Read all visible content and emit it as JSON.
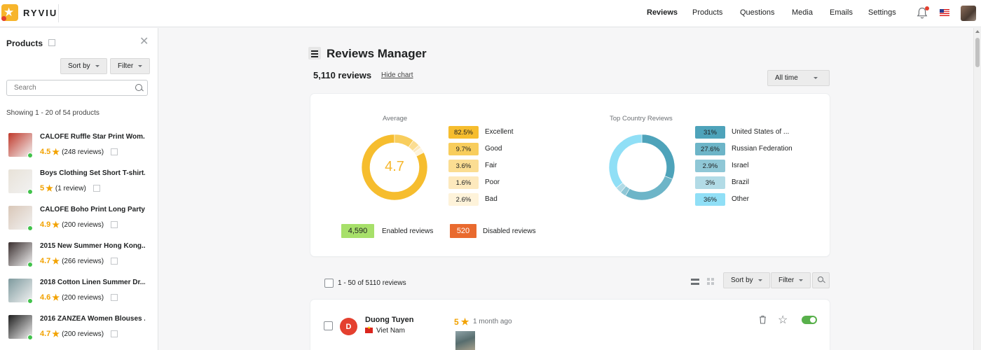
{
  "app": {
    "name": "RYVIU"
  },
  "nav": [
    {
      "label": "Reviews",
      "active": true
    },
    {
      "label": "Products",
      "active": false
    },
    {
      "label": "Questions",
      "active": false
    },
    {
      "label": "Media",
      "active": false
    },
    {
      "label": "Emails",
      "active": false
    },
    {
      "label": "Settings",
      "active": false
    }
  ],
  "sidebar": {
    "title": "Products",
    "sort_label": "Sort by",
    "filter_label": "Filter",
    "search_placeholder": "Search",
    "showing": "Showing 1 - 20 of 54 products",
    "products": [
      {
        "name": "CALOFE Ruffle Star Print Wom...",
        "rating": "4.5",
        "reviews": "(248 reviews)",
        "thumb": "#c0392b"
      },
      {
        "name": "Boys Clothing Set Short T-shirt...",
        "rating": "5",
        "reviews": "(1 review)",
        "thumb": "#e8e2d8"
      },
      {
        "name": "CALOFE Boho Print Long Party...",
        "rating": "4.9",
        "reviews": "(200 reviews)",
        "thumb": "#d9c7b8"
      },
      {
        "name": "2015 New Summer Hong Kong...",
        "rating": "4.7",
        "reviews": "(266 reviews)",
        "thumb": "#3a2f2f"
      },
      {
        "name": "2018 Cotton Linen Summer Dr...",
        "rating": "4.6",
        "reviews": "(200 reviews)",
        "thumb": "#7e9a9e"
      },
      {
        "name": "2016 ZANZEA Women Blouses ...",
        "rating": "4.7",
        "reviews": "(200 reviews)",
        "thumb": "#1e1e1e"
      }
    ]
  },
  "main": {
    "title": "Reviews Manager",
    "review_count": "5,110 reviews",
    "hide_chart": "Hide chart",
    "period": "All time",
    "average": {
      "label": "Average",
      "value": "4.7",
      "items": [
        {
          "pct": "82.5%",
          "value": 82.5,
          "label": "Excellent",
          "color": "#f6bd2e"
        },
        {
          "pct": "9.7%",
          "value": 9.7,
          "label": "Good",
          "color": "#f8cd5c"
        },
        {
          "pct": "3.6%",
          "value": 3.6,
          "label": "Fair",
          "color": "#fbdd92"
        },
        {
          "pct": "1.6%",
          "value": 1.6,
          "label": "Poor",
          "color": "#fde9bd"
        },
        {
          "pct": "2.6%",
          "value": 2.6,
          "label": "Bad",
          "color": "#fef3da"
        }
      ]
    },
    "countries": {
      "label": "Top Country Reviews",
      "items": [
        {
          "pct": "31%",
          "value": 31,
          "label": "United States of ...",
          "color": "#4ea3ba"
        },
        {
          "pct": "27.6%",
          "value": 27.6,
          "label": "Russian Federation",
          "color": "#6db5c8"
        },
        {
          "pct": "2.9%",
          "value": 2.9,
          "label": "Israel",
          "color": "#8fc7d6"
        },
        {
          "pct": "3%",
          "value": 3,
          "label": "Brazil",
          "color": "#b2dbe6"
        },
        {
          "pct": "36%",
          "value": 36,
          "label": "Other",
          "color": "#90dff6"
        }
      ]
    },
    "enabled": {
      "value": "4,590",
      "label": "Enabled reviews",
      "color": "#a7e06a"
    },
    "disabled": {
      "value": "520",
      "label": "Disabled reviews",
      "color": "#e96a2e"
    },
    "list": {
      "range": "1 - 50 of 5110 reviews",
      "sort_label": "Sort by",
      "filter_label": "Filter"
    },
    "review": {
      "initial": "D",
      "name": "Duong Tuyen",
      "country": "Viet Nam",
      "rating": "5",
      "time": "1 month ago"
    }
  }
}
